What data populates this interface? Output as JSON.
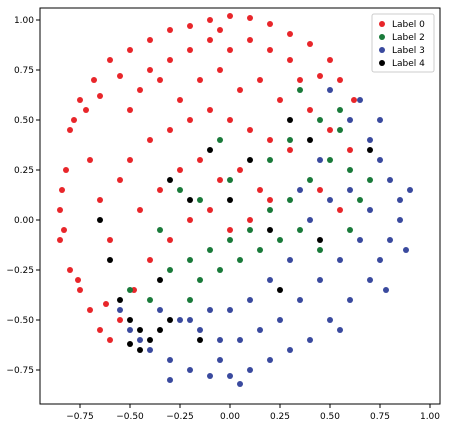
{
  "chart_data": {
    "type": "scatter",
    "title": "",
    "xlabel": "",
    "ylabel": "",
    "xlim": [
      -0.95,
      1.05
    ],
    "ylim": [
      -0.92,
      1.06
    ],
    "x_ticks": [
      -0.75,
      -0.5,
      -0.25,
      0.0,
      0.25,
      0.5,
      0.75,
      1.0
    ],
    "x_tick_labels": [
      "−0.75",
      "−0.50",
      "−0.25",
      "0.00",
      "0.25",
      "0.50",
      "0.75",
      "1.00"
    ],
    "y_ticks": [
      -0.75,
      -0.5,
      -0.25,
      0.0,
      0.25,
      0.5,
      0.75,
      1.0
    ],
    "y_tick_labels": [
      "−0.75",
      "−0.50",
      "−0.25",
      "0.00",
      "0.25",
      "0.50",
      "0.75",
      "1.00"
    ],
    "grid": false,
    "legend_position": "top-right",
    "series": [
      {
        "name": "Label 0",
        "color": "#e8262a",
        "points": [
          [
            -0.85,
            0.05
          ],
          [
            -0.82,
            0.25
          ],
          [
            -0.8,
            0.45
          ],
          [
            -0.75,
            0.6
          ],
          [
            -0.68,
            0.7
          ],
          [
            -0.6,
            0.8
          ],
          [
            -0.5,
            0.85
          ],
          [
            -0.4,
            0.9
          ],
          [
            -0.3,
            0.95
          ],
          [
            -0.2,
            0.97
          ],
          [
            -0.1,
            1.0
          ],
          [
            0.0,
            1.02
          ],
          [
            0.1,
            1.01
          ],
          [
            0.2,
            0.98
          ],
          [
            0.3,
            0.93
          ],
          [
            0.4,
            0.88
          ],
          [
            0.5,
            0.8
          ],
          [
            0.55,
            0.7
          ],
          [
            -0.85,
            -0.1
          ],
          [
            -0.8,
            -0.25
          ],
          [
            -0.75,
            -0.35
          ],
          [
            -0.7,
            -0.45
          ],
          [
            -0.65,
            -0.55
          ],
          [
            -0.6,
            -0.6
          ],
          [
            -0.55,
            -0.5
          ],
          [
            -0.7,
            0.3
          ],
          [
            -0.65,
            0.1
          ],
          [
            -0.6,
            -0.1
          ],
          [
            -0.55,
            0.2
          ],
          [
            -0.5,
            0.55
          ],
          [
            -0.45,
            0.65
          ],
          [
            -0.4,
            0.75
          ],
          [
            -0.35,
            0.7
          ],
          [
            -0.3,
            0.8
          ],
          [
            -0.2,
            0.85
          ],
          [
            -0.1,
            0.9
          ],
          [
            0.0,
            0.85
          ],
          [
            0.1,
            0.9
          ],
          [
            0.2,
            0.85
          ],
          [
            0.3,
            0.8
          ],
          [
            0.35,
            0.7
          ],
          [
            -0.25,
            0.6
          ],
          [
            -0.15,
            0.7
          ],
          [
            -0.05,
            0.75
          ],
          [
            0.05,
            0.65
          ],
          [
            0.15,
            0.7
          ],
          [
            0.25,
            0.6
          ],
          [
            -0.5,
            0.3
          ],
          [
            -0.4,
            0.4
          ],
          [
            -0.3,
            0.45
          ],
          [
            -0.2,
            0.5
          ],
          [
            -0.1,
            0.55
          ],
          [
            0.0,
            0.5
          ],
          [
            0.1,
            0.45
          ],
          [
            0.2,
            0.4
          ],
          [
            0.3,
            0.35
          ],
          [
            -0.45,
            0.05
          ],
          [
            -0.35,
            0.15
          ],
          [
            -0.25,
            0.25
          ],
          [
            -0.15,
            0.3
          ],
          [
            -0.05,
            0.2
          ],
          [
            0.05,
            0.25
          ],
          [
            0.15,
            0.15
          ],
          [
            -0.4,
            -0.2
          ],
          [
            -0.3,
            -0.1
          ],
          [
            -0.2,
            0.0
          ],
          [
            -0.1,
            0.05
          ],
          [
            0.0,
            -0.05
          ],
          [
            0.1,
            0.0
          ],
          [
            0.2,
            0.1
          ],
          [
            0.4,
            0.55
          ],
          [
            0.5,
            0.45
          ],
          [
            0.6,
            0.35
          ],
          [
            0.45,
            0.15
          ],
          [
            0.55,
            0.05
          ],
          [
            -0.78,
            0.5
          ],
          [
            -0.72,
            0.55
          ],
          [
            -0.84,
            0.15
          ],
          [
            -0.83,
            -0.05
          ],
          [
            -0.76,
            -0.3
          ],
          [
            -0.62,
            -0.42
          ],
          [
            -0.48,
            -0.35
          ],
          [
            0.62,
            0.6
          ],
          [
            0.45,
            0.72
          ],
          [
            -0.05,
            0.95
          ],
          [
            -0.55,
            0.72
          ],
          [
            -0.65,
            0.62
          ]
        ]
      },
      {
        "name": "Label 2",
        "color": "#1a7a3a",
        "points": [
          [
            0.35,
            0.65
          ],
          [
            0.45,
            0.5
          ],
          [
            0.55,
            0.45
          ],
          [
            0.5,
            0.3
          ],
          [
            0.6,
            0.25
          ],
          [
            0.65,
            0.1
          ],
          [
            0.4,
            0.2
          ],
          [
            0.3,
            0.1
          ],
          [
            0.2,
            0.05
          ],
          [
            0.1,
            -0.05
          ],
          [
            0.0,
            -0.1
          ],
          [
            -0.1,
            -0.15
          ],
          [
            -0.2,
            -0.2
          ],
          [
            -0.3,
            -0.25
          ],
          [
            -0.15,
            -0.3
          ],
          [
            -0.05,
            -0.25
          ],
          [
            0.05,
            -0.2
          ],
          [
            0.15,
            -0.15
          ],
          [
            0.25,
            -0.1
          ],
          [
            0.35,
            -0.05
          ],
          [
            -0.25,
            0.15
          ],
          [
            -0.35,
            -0.05
          ],
          [
            -0.15,
            0.1
          ],
          [
            0.0,
            0.2
          ],
          [
            0.2,
            0.3
          ],
          [
            0.3,
            0.4
          ],
          [
            -0.4,
            -0.4
          ],
          [
            -0.5,
            -0.35
          ],
          [
            -0.2,
            -0.4
          ],
          [
            0.55,
            0.55
          ],
          [
            0.7,
            0.2
          ],
          [
            0.45,
            -0.15
          ],
          [
            0.6,
            -0.05
          ],
          [
            -0.05,
            0.4
          ]
        ]
      },
      {
        "name": "Label 3",
        "color": "#3a4a9e",
        "points": [
          [
            0.6,
            0.5
          ],
          [
            0.7,
            0.4
          ],
          [
            0.75,
            0.3
          ],
          [
            0.8,
            0.2
          ],
          [
            0.85,
            0.1
          ],
          [
            0.85,
            0.0
          ],
          [
            0.8,
            -0.1
          ],
          [
            0.75,
            -0.2
          ],
          [
            0.7,
            -0.3
          ],
          [
            0.6,
            -0.4
          ],
          [
            0.5,
            -0.5
          ],
          [
            0.4,
            -0.6
          ],
          [
            0.3,
            -0.65
          ],
          [
            0.2,
            -0.7
          ],
          [
            0.1,
            -0.75
          ],
          [
            0.0,
            -0.78
          ],
          [
            -0.1,
            -0.78
          ],
          [
            -0.2,
            -0.75
          ],
          [
            -0.3,
            -0.7
          ],
          [
            -0.4,
            -0.65
          ],
          [
            -0.5,
            -0.55
          ],
          [
            -0.55,
            -0.45
          ],
          [
            0.65,
            0.6
          ],
          [
            0.5,
            0.65
          ],
          [
            0.55,
            -0.2
          ],
          [
            0.65,
            -0.1
          ],
          [
            0.45,
            -0.3
          ],
          [
            0.35,
            -0.4
          ],
          [
            0.25,
            -0.5
          ],
          [
            0.15,
            -0.55
          ],
          [
            0.05,
            -0.6
          ],
          [
            -0.05,
            -0.6
          ],
          [
            -0.15,
            -0.55
          ],
          [
            -0.25,
            -0.5
          ],
          [
            -0.35,
            -0.45
          ],
          [
            0.5,
            0.1
          ],
          [
            0.4,
            0.0
          ],
          [
            0.3,
            -0.2
          ],
          [
            0.2,
            -0.3
          ],
          [
            0.1,
            -0.4
          ],
          [
            0.0,
            -0.45
          ],
          [
            -0.1,
            -0.45
          ],
          [
            -0.2,
            -0.5
          ],
          [
            0.75,
            0.5
          ],
          [
            0.7,
            0.05
          ],
          [
            0.6,
            0.15
          ],
          [
            0.9,
            0.15
          ],
          [
            0.88,
            -0.15
          ],
          [
            0.78,
            -0.35
          ],
          [
            0.55,
            -0.55
          ],
          [
            -0.45,
            -0.6
          ],
          [
            -0.3,
            -0.8
          ],
          [
            0.05,
            -0.82
          ],
          [
            0.45,
            0.3
          ],
          [
            0.35,
            0.15
          ],
          [
            -0.05,
            -0.7
          ]
        ]
      },
      {
        "name": "Label 4",
        "color": "#000000",
        "points": [
          [
            -0.5,
            -0.5
          ],
          [
            -0.45,
            -0.55
          ],
          [
            -0.4,
            -0.6
          ],
          [
            -0.35,
            -0.55
          ],
          [
            -0.3,
            -0.5
          ],
          [
            -0.45,
            -0.65
          ],
          [
            -0.5,
            -0.62
          ],
          [
            -0.3,
            0.2
          ],
          [
            -0.1,
            0.35
          ],
          [
            0.1,
            0.3
          ],
          [
            0.3,
            0.5
          ],
          [
            0.4,
            0.4
          ],
          [
            -0.2,
            0.1
          ],
          [
            0.0,
            0.1
          ],
          [
            0.2,
            -0.05
          ],
          [
            -0.6,
            -0.2
          ],
          [
            -0.65,
            0.0
          ],
          [
            -0.35,
            -0.3
          ],
          [
            0.45,
            -0.1
          ],
          [
            0.25,
            -0.35
          ],
          [
            0.7,
            0.35
          ],
          [
            -0.15,
            -0.6
          ],
          [
            -0.55,
            -0.4
          ]
        ]
      }
    ]
  }
}
